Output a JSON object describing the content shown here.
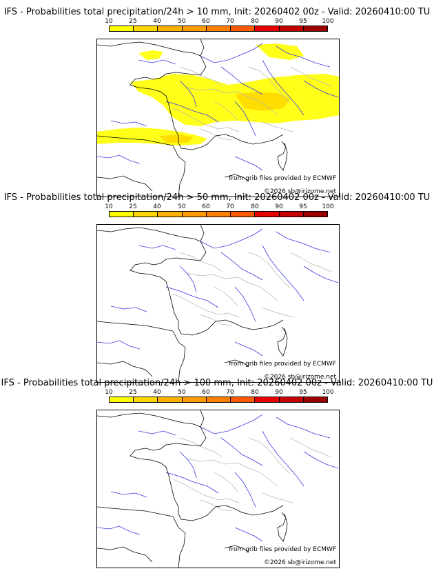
{
  "colorbar": {
    "ticks": [
      "10",
      "25",
      "40",
      "50",
      "60",
      "70",
      "80",
      "90",
      "95",
      "100"
    ],
    "colors": [
      "#ffff00",
      "#ffd700",
      "#ffb000",
      "#ff9a00",
      "#ff7f00",
      "#ff5a00",
      "#e60000",
      "#c40000",
      "#9a0000",
      "#5a0000"
    ]
  },
  "panels": [
    {
      "title": "IFS - Probabilities total precipitation/24h > 10 mm, Init: 20260402 00z - Valid: 20260410:00 TU",
      "source_credit": "from grib files provided by ECMWF",
      "copyright": "©2026 sb@irizome.net",
      "has_precip": true
    },
    {
      "title": "IFS - Probabilities total precipitation/24h > 50 mm, Init: 20260402 00z - Valid: 20260410:00 TU",
      "source_credit": "from grib files provided by ECMWF",
      "copyright": "©2026 sb@irizome.net",
      "has_precip": false
    },
    {
      "title": "IFS - Probabilities total precipitation/24h > 100 mm, Init: 20260402 00z - Valid: 20260410:00 TU",
      "source_credit": "from grib files provided by ECMWF",
      "copyright": "©2026 sb@irizome.net",
      "has_precip": false
    }
  ]
}
